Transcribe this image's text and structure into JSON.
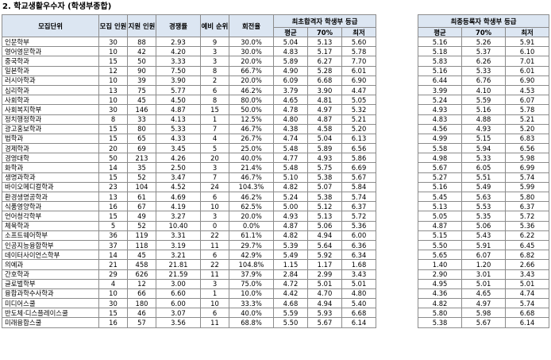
{
  "title": "2. 학교생활우수자 (학생부종합)",
  "headers": {
    "unit": "모집단위",
    "recruit": "모집 인원",
    "apply": "지원 인원",
    "ratio": "경쟁률",
    "waiting": "예비 순위",
    "roundrate": "회전율",
    "final_pass": "최초합격자 학생부 등급",
    "final_enroll": "최종등록자 학생부 등급",
    "avg": "평균",
    "p70": "70%",
    "low": "최저"
  },
  "rows": [
    {
      "name": "인문학부",
      "n": "30",
      "a": "88",
      "r": "2.93",
      "w": "9",
      "t": "30.0%",
      "fa": "5.04",
      "f7": "5.13",
      "fl": "5.60",
      "ea": "5.16",
      "e7": "5.26",
      "el": "5.91"
    },
    {
      "name": "영어영문학과",
      "n": "10",
      "a": "42",
      "r": "4.20",
      "w": "3",
      "t": "30.0%",
      "fa": "4.83",
      "f7": "5.17",
      "fl": "5.78",
      "ea": "5.18",
      "e7": "5.37",
      "el": "6.10"
    },
    {
      "name": "중국학과",
      "n": "15",
      "a": "50",
      "r": "3.33",
      "w": "3",
      "t": "20.0%",
      "fa": "5.89",
      "f7": "6.27",
      "fl": "7.70",
      "ea": "5.83",
      "e7": "6.26",
      "el": "7.01"
    },
    {
      "name": "일본학과",
      "n": "12",
      "a": "90",
      "r": "7.50",
      "w": "8",
      "t": "66.7%",
      "fa": "4.90",
      "f7": "5.28",
      "fl": "6.01",
      "ea": "5.16",
      "e7": "5.33",
      "el": "6.01"
    },
    {
      "name": "러시아학과",
      "n": "10",
      "a": "39",
      "r": "3.90",
      "w": "2",
      "t": "20.0%",
      "fa": "6.09",
      "f7": "6.68",
      "fl": "6.90",
      "ea": "6.44",
      "e7": "6.76",
      "el": "6.90"
    },
    {
      "name": "심리학과",
      "n": "13",
      "a": "75",
      "r": "5.77",
      "w": "6",
      "t": "46.2%",
      "fa": "3.79",
      "f7": "3.90",
      "fl": "4.47",
      "ea": "3.99",
      "e7": "4.10",
      "el": "4.53"
    },
    {
      "name": "사회학과",
      "n": "10",
      "a": "45",
      "r": "4.50",
      "w": "8",
      "t": "80.0%",
      "fa": "4.65",
      "f7": "4.81",
      "fl": "5.05",
      "ea": "5.24",
      "e7": "5.59",
      "el": "6.07"
    },
    {
      "name": "사회복지학부",
      "n": "30",
      "a": "146",
      "r": "4.87",
      "w": "15",
      "t": "50.0%",
      "fa": "4.78",
      "f7": "4.97",
      "fl": "5.32",
      "ea": "4.93",
      "e7": "5.16",
      "el": "5.78"
    },
    {
      "name": "정치행정학과",
      "n": "8",
      "a": "33",
      "r": "4.13",
      "w": "1",
      "t": "12.5%",
      "fa": "4.80",
      "f7": "4.87",
      "fl": "5.21",
      "ea": "4.83",
      "e7": "4.88",
      "el": "5.21"
    },
    {
      "name": "광고홍보학과",
      "n": "15",
      "a": "80",
      "r": "5.33",
      "w": "7",
      "t": "46.7%",
      "fa": "4.38",
      "f7": "4.58",
      "fl": "5.20",
      "ea": "4.56",
      "e7": "4.93",
      "el": "5.20"
    },
    {
      "name": "법학과",
      "n": "15",
      "a": "65",
      "r": "4.33",
      "w": "4",
      "t": "26.7%",
      "fa": "4.74",
      "f7": "5.04",
      "fl": "6.13",
      "ea": "4.99",
      "e7": "5.15",
      "el": "6.83"
    },
    {
      "name": "경제학과",
      "n": "20",
      "a": "69",
      "r": "3.45",
      "w": "5",
      "t": "25.0%",
      "fa": "5.48",
      "f7": "5.89",
      "fl": "6.56",
      "ea": "5.58",
      "e7": "5.94",
      "el": "6.56"
    },
    {
      "name": "경영대학",
      "n": "50",
      "a": "213",
      "r": "4.26",
      "w": "20",
      "t": "40.0%",
      "fa": "4.77",
      "f7": "4.93",
      "fl": "5.86",
      "ea": "4.98",
      "e7": "5.33",
      "el": "5.98"
    },
    {
      "name": "화학과",
      "n": "14",
      "a": "35",
      "r": "2.50",
      "w": "3",
      "t": "21.4%",
      "fa": "5.48",
      "f7": "5.75",
      "fl": "6.69",
      "ea": "5.67",
      "e7": "6.05",
      "el": "6.99"
    },
    {
      "name": "생명과학과",
      "n": "15",
      "a": "52",
      "r": "3.47",
      "w": "7",
      "t": "46.7%",
      "fa": "5.10",
      "f7": "5.38",
      "fl": "5.67",
      "ea": "5.27",
      "e7": "5.51",
      "el": "5.74"
    },
    {
      "name": "바이오메디컬학과",
      "n": "23",
      "a": "104",
      "r": "4.52",
      "w": "24",
      "t": "104.3%",
      "fa": "4.82",
      "f7": "5.07",
      "fl": "5.84",
      "ea": "5.16",
      "e7": "5.49",
      "el": "5.99"
    },
    {
      "name": "환경생명공학과",
      "n": "13",
      "a": "61",
      "r": "4.69",
      "w": "6",
      "t": "46.2%",
      "fa": "5.24",
      "f7": "5.38",
      "fl": "5.74",
      "ea": "5.45",
      "e7": "5.63",
      "el": "5.80"
    },
    {
      "name": "식품영양학과",
      "n": "16",
      "a": "67",
      "r": "4.19",
      "w": "10",
      "t": "62.5%",
      "fa": "5.00",
      "f7": "5.12",
      "fl": "6.37",
      "ea": "5.13",
      "e7": "5.53",
      "el": "6.37"
    },
    {
      "name": "언어청각학부",
      "n": "15",
      "a": "49",
      "r": "3.27",
      "w": "3",
      "t": "20.0%",
      "fa": "4.93",
      "f7": "5.13",
      "fl": "5.72",
      "ea": "5.05",
      "e7": "5.35",
      "el": "5.72"
    },
    {
      "name": "체육학과",
      "n": "5",
      "a": "52",
      "r": "10.40",
      "w": "0",
      "t": "0.0%",
      "fa": "4.87",
      "f7": "5.06",
      "fl": "5.36",
      "ea": "4.87",
      "e7": "5.06",
      "el": "5.36"
    },
    {
      "name": "소프트웨어학부",
      "n": "36",
      "a": "119",
      "r": "3.31",
      "w": "22",
      "t": "61.1%",
      "fa": "4.82",
      "f7": "4.94",
      "fl": "6.00",
      "ea": "5.15",
      "e7": "5.43",
      "el": "6.22"
    },
    {
      "name": "인공지능융합학부",
      "n": "37",
      "a": "118",
      "r": "3.19",
      "w": "11",
      "t": "29.7%",
      "fa": "5.39",
      "f7": "5.64",
      "fl": "6.36",
      "ea": "5.50",
      "e7": "5.91",
      "el": "6.45"
    },
    {
      "name": "데이터사이언스학부",
      "n": "14",
      "a": "45",
      "r": "3.21",
      "w": "6",
      "t": "42.9%",
      "fa": "5.49",
      "f7": "5.92",
      "fl": "6.34",
      "ea": "5.65",
      "e7": "6.07",
      "el": "6.82"
    },
    {
      "name": "의예과",
      "n": "21",
      "a": "458",
      "r": "21.81",
      "w": "22",
      "t": "104.8%",
      "fa": "1.15",
      "f7": "1.17",
      "fl": "1.68",
      "ea": "1.40",
      "e7": "1.20",
      "el": "2.66"
    },
    {
      "name": "간호학과",
      "n": "29",
      "a": "626",
      "r": "21.59",
      "w": "11",
      "t": "37.9%",
      "fa": "2.84",
      "f7": "2.99",
      "fl": "3.43",
      "ea": "2.90",
      "e7": "3.01",
      "el": "3.43"
    },
    {
      "name": "글로벌학부",
      "n": "4",
      "a": "12",
      "r": "3.00",
      "w": "3",
      "t": "75.0%",
      "fa": "4.72",
      "f7": "5.01",
      "fl": "5.01",
      "ea": "4.95",
      "e7": "5.01",
      "el": "5.01"
    },
    {
      "name": "융합과학수사학과",
      "n": "10",
      "a": "66",
      "r": "6.60",
      "w": "1",
      "t": "10.0%",
      "fa": "4.42",
      "f7": "4.70",
      "fl": "4.80",
      "ea": "4.36",
      "e7": "4.65",
      "el": "4.74"
    },
    {
      "name": "미디어스쿨",
      "n": "30",
      "a": "180",
      "r": "6.00",
      "w": "10",
      "t": "33.3%",
      "fa": "4.68",
      "f7": "4.94",
      "fl": "5.40",
      "ea": "4.82",
      "e7": "4.97",
      "el": "5.74"
    },
    {
      "name": "반도체·디스플레이스쿨",
      "n": "15",
      "a": "46",
      "r": "3.07",
      "w": "6",
      "t": "40.0%",
      "fa": "5.59",
      "f7": "5.93",
      "fl": "6.68",
      "ea": "5.80",
      "e7": "5.98",
      "el": "6.68"
    },
    {
      "name": "미래융합스쿨",
      "n": "16",
      "a": "57",
      "r": "3.56",
      "w": "11",
      "t": "68.8%",
      "fa": "5.50",
      "f7": "5.67",
      "fl": "6.14",
      "ea": "5.38",
      "e7": "5.67",
      "el": "6.14"
    }
  ]
}
